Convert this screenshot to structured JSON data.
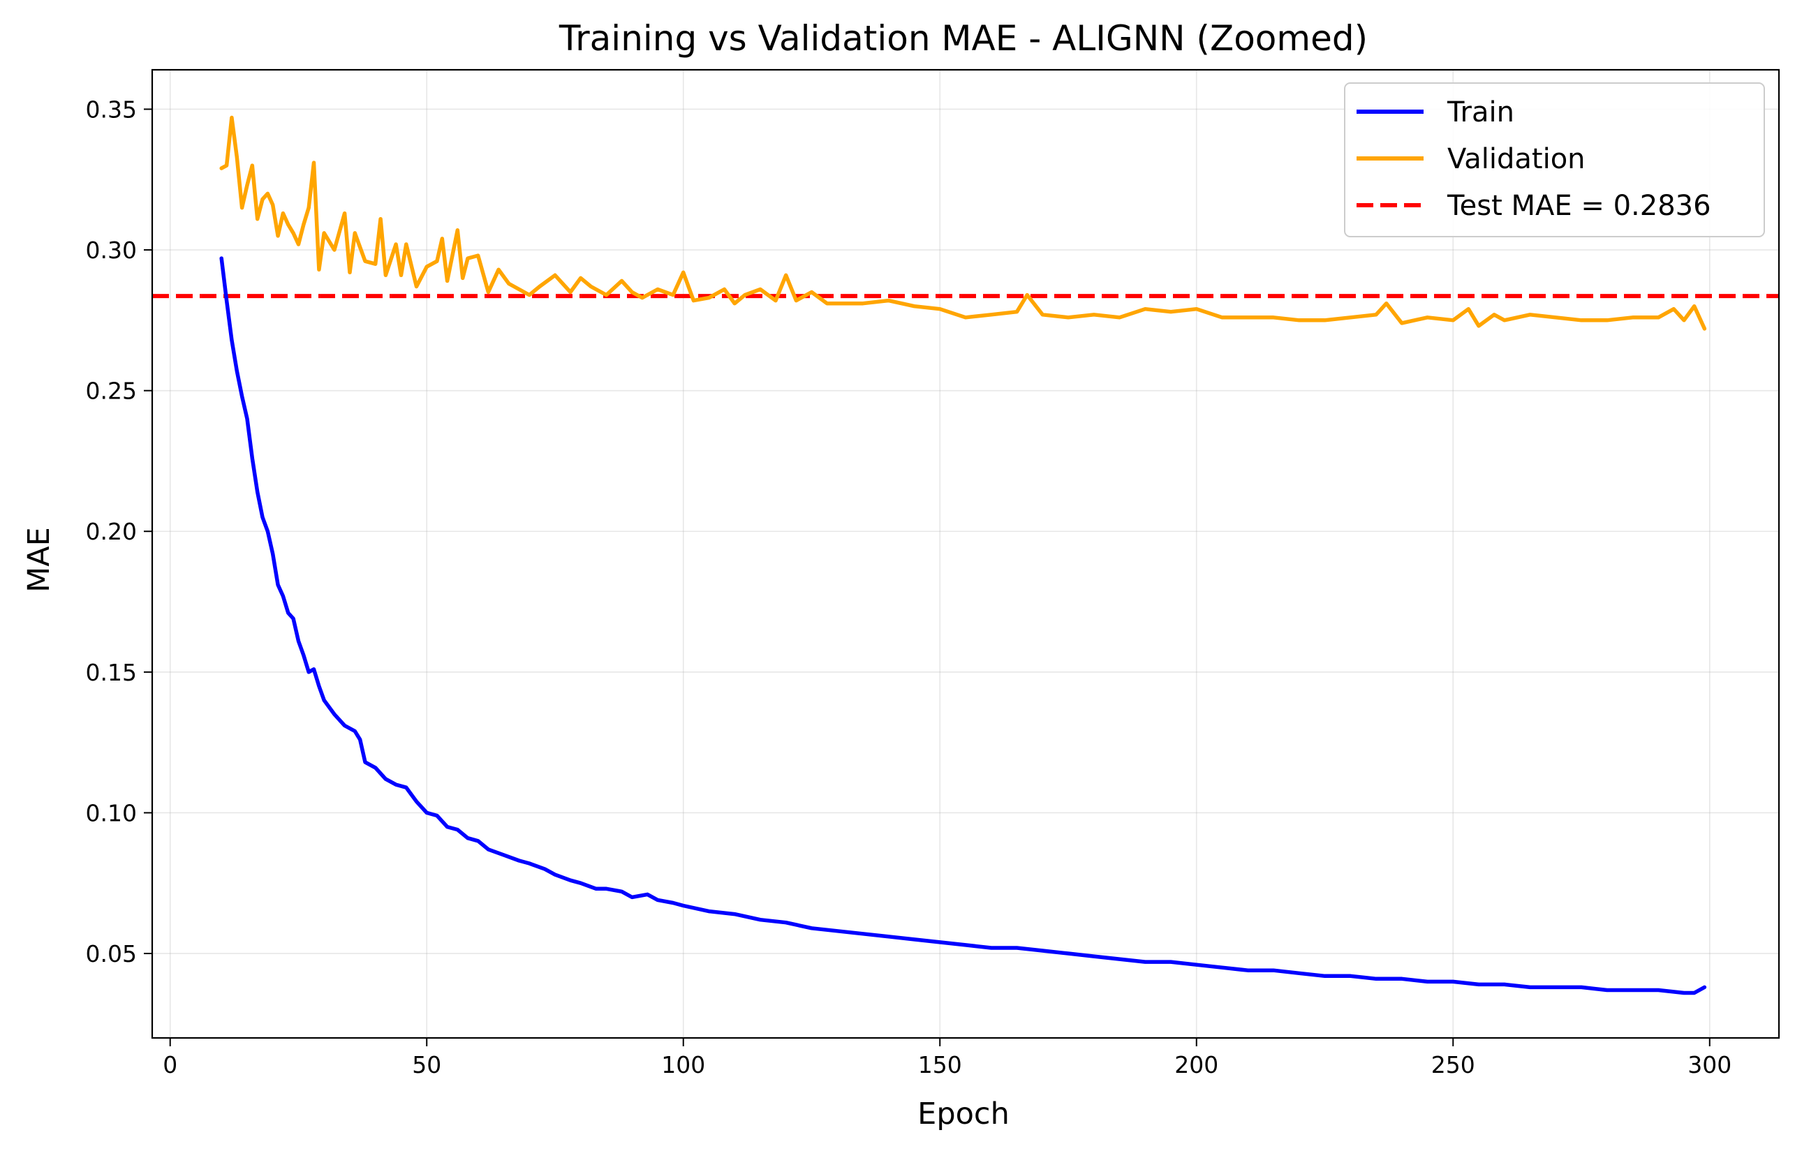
{
  "chart_data": {
    "type": "line",
    "title": "Training vs Validation MAE - ALIGNN (Zoomed)",
    "xlabel": "Epoch",
    "ylabel": "MAE",
    "xlim": [
      -3.5,
      313.5
    ],
    "ylim": [
      0.02,
      0.364
    ],
    "xticks": [
      0,
      50,
      100,
      150,
      200,
      250,
      300
    ],
    "yticks": [
      0.05,
      0.1,
      0.15,
      0.2,
      0.25,
      0.3,
      0.35
    ],
    "xtick_labels": [
      "0",
      "50",
      "100",
      "150",
      "200",
      "250",
      "300"
    ],
    "ytick_labels": [
      "0.05",
      "0.10",
      "0.15",
      "0.20",
      "0.25",
      "0.30",
      "0.35"
    ],
    "grid": true,
    "legend_position": "top-right",
    "series": [
      {
        "name": "Train",
        "color": "#0000ff",
        "style": "solid",
        "x": [
          10,
          11,
          12,
          13,
          14,
          15,
          16,
          17,
          18,
          19,
          20,
          21,
          22,
          23,
          24,
          25,
          26,
          27,
          28,
          29,
          30,
          32,
          34,
          36,
          37,
          38,
          40,
          42,
          44,
          46,
          48,
          50,
          52,
          54,
          56,
          58,
          60,
          62,
          65,
          68,
          70,
          73,
          75,
          78,
          80,
          83,
          85,
          88,
          90,
          93,
          95,
          98,
          100,
          105,
          110,
          115,
          120,
          125,
          130,
          135,
          140,
          145,
          150,
          155,
          160,
          165,
          170,
          175,
          180,
          185,
          190,
          195,
          200,
          205,
          210,
          215,
          220,
          225,
          230,
          235,
          240,
          245,
          250,
          255,
          260,
          265,
          270,
          275,
          280,
          285,
          290,
          295,
          297,
          299
        ],
        "y": [
          0.297,
          0.282,
          0.268,
          0.257,
          0.248,
          0.24,
          0.226,
          0.214,
          0.205,
          0.2,
          0.192,
          0.181,
          0.177,
          0.171,
          0.169,
          0.161,
          0.156,
          0.15,
          0.151,
          0.145,
          0.14,
          0.135,
          0.131,
          0.129,
          0.126,
          0.118,
          0.116,
          0.112,
          0.11,
          0.109,
          0.104,
          0.1,
          0.099,
          0.095,
          0.094,
          0.091,
          0.09,
          0.087,
          0.085,
          0.083,
          0.082,
          0.08,
          0.078,
          0.076,
          0.075,
          0.073,
          0.073,
          0.072,
          0.07,
          0.071,
          0.069,
          0.068,
          0.067,
          0.065,
          0.064,
          0.062,
          0.061,
          0.059,
          0.058,
          0.057,
          0.056,
          0.055,
          0.054,
          0.053,
          0.052,
          0.052,
          0.051,
          0.05,
          0.049,
          0.048,
          0.047,
          0.047,
          0.046,
          0.045,
          0.044,
          0.044,
          0.043,
          0.042,
          0.042,
          0.041,
          0.041,
          0.04,
          0.04,
          0.039,
          0.039,
          0.038,
          0.038,
          0.038,
          0.037,
          0.037,
          0.037,
          0.036,
          0.036,
          0.038
        ]
      },
      {
        "name": "Validation",
        "color": "#ffa500",
        "style": "solid",
        "x": [
          10,
          11,
          12,
          13,
          14,
          15,
          16,
          17,
          18,
          19,
          20,
          21,
          22,
          23,
          24,
          25,
          26,
          27,
          28,
          29,
          30,
          32,
          34,
          35,
          36,
          38,
          40,
          41,
          42,
          44,
          45,
          46,
          48,
          50,
          52,
          53,
          54,
          56,
          57,
          58,
          60,
          62,
          64,
          66,
          68,
          70,
          72,
          75,
          78,
          80,
          82,
          85,
          88,
          90,
          92,
          95,
          98,
          100,
          102,
          105,
          108,
          110,
          112,
          115,
          118,
          120,
          122,
          125,
          128,
          130,
          135,
          140,
          145,
          150,
          155,
          160,
          165,
          167,
          170,
          175,
          180,
          185,
          190,
          195,
          200,
          205,
          210,
          215,
          220,
          225,
          230,
          235,
          237,
          240,
          245,
          250,
          253,
          255,
          258,
          260,
          265,
          270,
          275,
          280,
          285,
          290,
          293,
          295,
          297,
          299
        ],
        "y": [
          0.329,
          0.33,
          0.347,
          0.333,
          0.315,
          0.323,
          0.33,
          0.311,
          0.318,
          0.32,
          0.316,
          0.305,
          0.313,
          0.309,
          0.306,
          0.302,
          0.309,
          0.315,
          0.331,
          0.293,
          0.306,
          0.3,
          0.313,
          0.292,
          0.306,
          0.296,
          0.295,
          0.311,
          0.291,
          0.302,
          0.291,
          0.302,
          0.287,
          0.294,
          0.296,
          0.304,
          0.289,
          0.307,
          0.29,
          0.297,
          0.298,
          0.285,
          0.293,
          0.288,
          0.286,
          0.284,
          0.287,
          0.291,
          0.285,
          0.29,
          0.287,
          0.284,
          0.289,
          0.285,
          0.283,
          0.286,
          0.284,
          0.292,
          0.282,
          0.283,
          0.286,
          0.281,
          0.284,
          0.286,
          0.282,
          0.291,
          0.282,
          0.285,
          0.281,
          0.281,
          0.281,
          0.282,
          0.28,
          0.279,
          0.276,
          0.277,
          0.278,
          0.284,
          0.277,
          0.276,
          0.277,
          0.276,
          0.279,
          0.278,
          0.279,
          0.276,
          0.276,
          0.276,
          0.275,
          0.275,
          0.276,
          0.277,
          0.281,
          0.274,
          0.276,
          0.275,
          0.279,
          0.273,
          0.277,
          0.275,
          0.277,
          0.276,
          0.275,
          0.275,
          0.276,
          0.276,
          0.279,
          0.275,
          0.28,
          0.272
        ]
      },
      {
        "name": "Test MAE = 0.2836",
        "color": "#ff0000",
        "style": "dashed",
        "hline": 0.2836
      }
    ]
  }
}
